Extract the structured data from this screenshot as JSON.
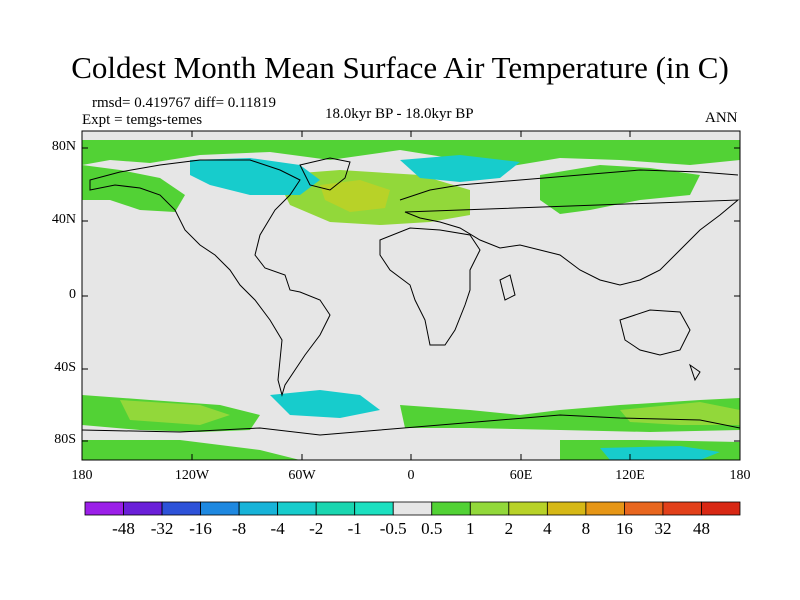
{
  "title": "Coldest Month Mean Surface Air Temperature (in C)",
  "stats": {
    "rmsd_diff": "rmsd= 0.419767 diff= 0.11819",
    "expt": "Expt = temgs-temes",
    "period": "18.0kyr BP - 18.0kyr BP",
    "season": "ANN"
  },
  "map": {
    "lat_labels": [
      "80N",
      "40N",
      "0",
      "40S",
      "80S"
    ],
    "lon_labels": [
      "180",
      "120W",
      "60W",
      "0",
      "60E",
      "120E",
      "180"
    ],
    "background_color": "#e6e6e6",
    "coastline_color": "#000000"
  },
  "colorbar": {
    "levels": [
      "-48",
      "-32",
      "-16",
      "-8",
      "-4",
      "-2",
      "-1",
      "-0.5",
      "0.5",
      "1",
      "2",
      "4",
      "8",
      "16",
      "32",
      "48"
    ],
    "colors": [
      "#9b1fe8",
      "#6a1fd8",
      "#2d52d8",
      "#1e88e0",
      "#17b3d8",
      "#17cccc",
      "#1ad6b0",
      "#1ce0c0",
      "#e6e6e6",
      "#52d235",
      "#92d83a",
      "#b8d228",
      "#d6b816",
      "#e69616",
      "#e8661e",
      "#e2401a",
      "#d82814"
    ]
  }
}
